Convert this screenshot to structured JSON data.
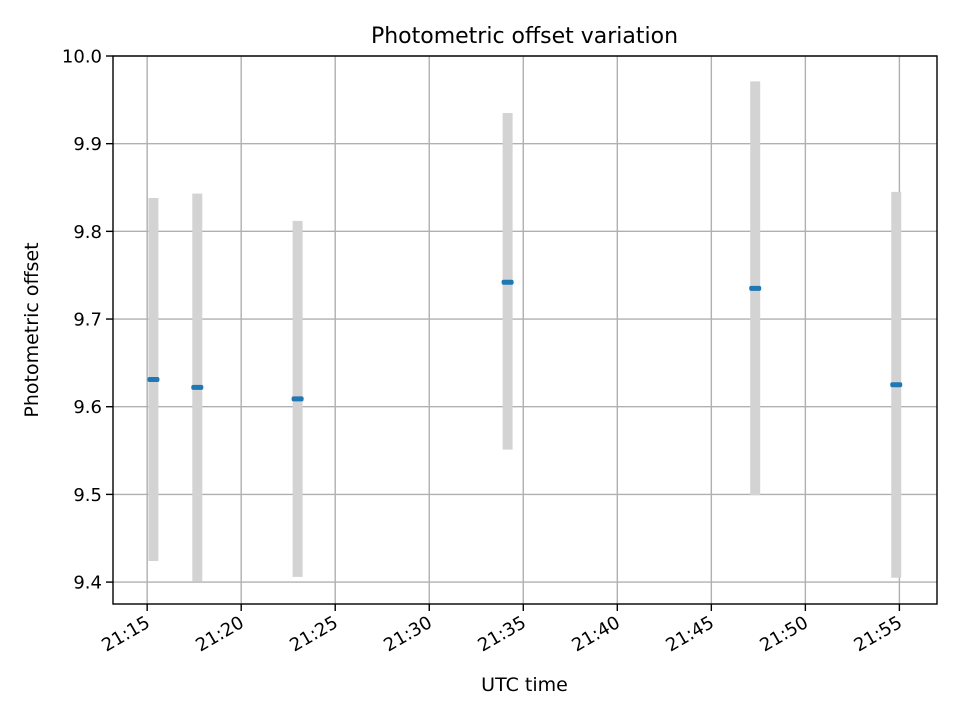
{
  "chart_data": {
    "type": "scatter",
    "title": "Photometric offset variation",
    "xlabel": "UTC time",
    "ylabel": "Photometric offset",
    "ylim": [
      9.375,
      10.0
    ],
    "xlim": [
      "21:13:11",
      "21:57:00"
    ],
    "x_ticks": [
      "21:15",
      "21:20",
      "21:25",
      "21:30",
      "21:35",
      "21:40",
      "21:45",
      "21:50",
      "21:55"
    ],
    "y_ticks": [
      9.4,
      9.5,
      9.6,
      9.7,
      9.8,
      9.9,
      10.0
    ],
    "y_tick_labels": [
      "9.4",
      "9.5",
      "9.6",
      "9.7",
      "9.8",
      "9.9",
      "10.0"
    ],
    "grid": true,
    "points": [
      {
        "time": "21:15:20",
        "y": 9.631,
        "err_low": 9.424,
        "err_high": 9.838
      },
      {
        "time": "21:17:40",
        "y": 9.622,
        "err_low": 9.401,
        "err_high": 9.843
      },
      {
        "time": "21:23:00",
        "y": 9.609,
        "err_low": 9.406,
        "err_high": 9.812
      },
      {
        "time": "21:34:10",
        "y": 9.742,
        "err_low": 9.551,
        "err_high": 9.935
      },
      {
        "time": "21:47:20",
        "y": 9.735,
        "err_low": 9.499,
        "err_high": 9.971
      },
      {
        "time": "21:54:50",
        "y": 9.625,
        "err_low": 9.405,
        "err_high": 9.845
      }
    ],
    "colors": {
      "marker": "#1f77b4",
      "errorbar": "#d3d3d3",
      "grid": "#b0b0b0"
    }
  }
}
